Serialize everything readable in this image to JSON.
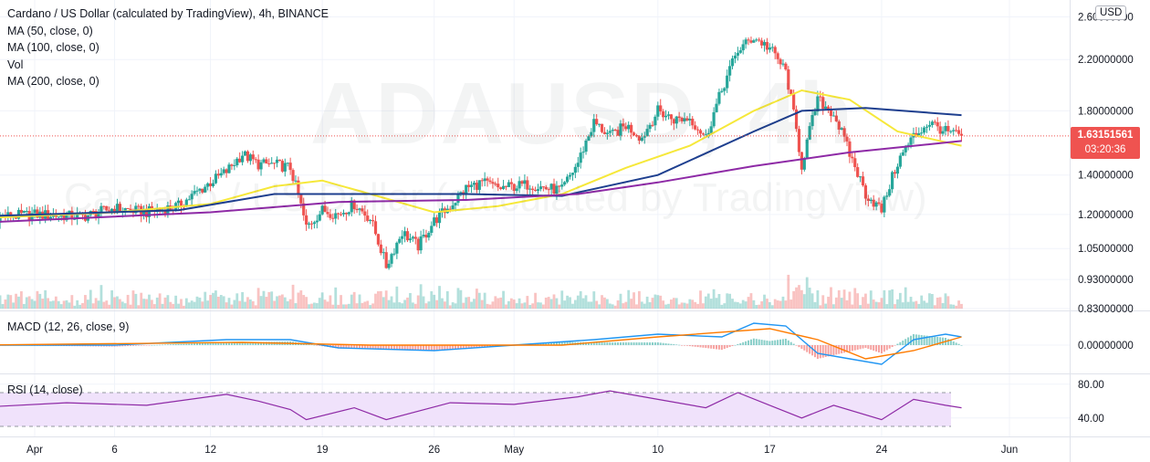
{
  "legend": {
    "title": "Cardano / US Dollar (calculated by TradingView), 4h, BINANCE",
    "ma50": "MA (50, close, 0)",
    "ma100": "MA (100, close, 0)",
    "vol": "Vol",
    "ma200": "MA (200, close, 0)"
  },
  "watermark": {
    "symbol": "ADAUSD, 4h",
    "name": "Cardano / US Dollar (calculated by TradingView)"
  },
  "currency_button": "USD",
  "last_price": {
    "price": "1.63151561",
    "countdown": "03:20:36"
  },
  "macd_label": "MACD (12, 26, close, 9)",
  "rsi_label": "RSI (14, close)",
  "colors": {
    "up": "#26a69a",
    "down": "#ef5350",
    "ma50": "#f6e83a",
    "ma100": "#1e3f8f",
    "ma200": "#8e2aa6",
    "macd": "#2196f3",
    "signal": "#ff7b00",
    "rsi": "#8e2aa6",
    "rsi_band": "#f0e2fb"
  },
  "chart_data": {
    "type": "candlestick",
    "x_ticks": [
      {
        "label": "Apr",
        "date": "2021-04-01"
      },
      {
        "label": "6",
        "date": "2021-04-06"
      },
      {
        "label": "12",
        "date": "2021-04-12"
      },
      {
        "label": "19",
        "date": "2021-04-19"
      },
      {
        "label": "26",
        "date": "2021-04-26"
      },
      {
        "label": "May",
        "date": "2021-05-01"
      },
      {
        "label": "10",
        "date": "2021-05-10"
      },
      {
        "label": "17",
        "date": "2021-05-17"
      },
      {
        "label": "24",
        "date": "2021-05-24"
      },
      {
        "label": "Jun",
        "date": "2021-06-01"
      }
    ],
    "y_ticks": [
      "2.60000000",
      "2.20000000",
      "1.80000000",
      "1.40000000",
      "1.20000000",
      "1.05000000",
      "0.93000000",
      "0.83000000"
    ],
    "y_range": [
      0.83,
      2.6
    ],
    "y_scale": "log",
    "price_path": [
      [
        "2021-03-28",
        1.18
      ],
      [
        "2021-04-01",
        1.2
      ],
      [
        "2021-04-04",
        1.19
      ],
      [
        "2021-04-06",
        1.23
      ],
      [
        "2021-04-08",
        1.21
      ],
      [
        "2021-04-10",
        1.24
      ],
      [
        "2021-04-11",
        1.3
      ],
      [
        "2021-04-13",
        1.42
      ],
      [
        "2021-04-14",
        1.52
      ],
      [
        "2021-04-15",
        1.46
      ],
      [
        "2021-04-16",
        1.46
      ],
      [
        "2021-04-17",
        1.44
      ],
      [
        "2021-04-18",
        1.14
      ],
      [
        "2021-04-19",
        1.22
      ],
      [
        "2021-04-20",
        1.2
      ],
      [
        "2021-04-21",
        1.25
      ],
      [
        "2021-04-22",
        1.18
      ],
      [
        "2021-04-23",
        0.98
      ],
      [
        "2021-04-24",
        1.12
      ],
      [
        "2021-04-25",
        1.06
      ],
      [
        "2021-04-26",
        1.17
      ],
      [
        "2021-04-27",
        1.24
      ],
      [
        "2021-04-28",
        1.33
      ],
      [
        "2021-04-29",
        1.36
      ],
      [
        "2021-04-30",
        1.33
      ],
      [
        "2021-05-02",
        1.35
      ],
      [
        "2021-05-03",
        1.33
      ],
      [
        "2021-05-04",
        1.32
      ],
      [
        "2021-05-05",
        1.47
      ],
      [
        "2021-05-06",
        1.72
      ],
      [
        "2021-05-07",
        1.63
      ],
      [
        "2021-05-08",
        1.7
      ],
      [
        "2021-05-09",
        1.62
      ],
      [
        "2021-05-10",
        1.8
      ],
      [
        "2021-05-11",
        1.74
      ],
      [
        "2021-05-12",
        1.75
      ],
      [
        "2021-05-13",
        1.62
      ],
      [
        "2021-05-14",
        1.95
      ],
      [
        "2021-05-15",
        2.28
      ],
      [
        "2021-05-16",
        2.4
      ],
      [
        "2021-05-17",
        2.3
      ],
      [
        "2021-05-18",
        2.1
      ],
      [
        "2021-05-19",
        1.45
      ],
      [
        "2021-05-20",
        1.88
      ],
      [
        "2021-05-21",
        1.78
      ],
      [
        "2021-05-22",
        1.52
      ],
      [
        "2021-05-23",
        1.3
      ],
      [
        "2021-05-24",
        1.22
      ],
      [
        "2021-05-25",
        1.47
      ],
      [
        "2021-05-26",
        1.63
      ],
      [
        "2021-05-27",
        1.72
      ],
      [
        "2021-05-28",
        1.66
      ],
      [
        "2021-05-29",
        1.63
      ]
    ],
    "ma_curves": {
      "MA (50, close, 0)": [
        [
          "2021-03-28",
          1.18
        ],
        [
          "2021-04-06",
          1.21
        ],
        [
          "2021-04-12",
          1.25
        ],
        [
          "2021-04-16",
          1.34
        ],
        [
          "2021-04-19",
          1.37
        ],
        [
          "2021-04-22",
          1.3
        ],
        [
          "2021-04-26",
          1.21
        ],
        [
          "2021-04-30",
          1.24
        ],
        [
          "2021-05-04",
          1.3
        ],
        [
          "2021-05-08",
          1.44
        ],
        [
          "2021-05-12",
          1.57
        ],
        [
          "2021-05-16",
          1.8
        ],
        [
          "2021-05-19",
          1.95
        ],
        [
          "2021-05-22",
          1.88
        ],
        [
          "2021-05-25",
          1.66
        ],
        [
          "2021-05-29",
          1.57
        ]
      ],
      "MA (100, close, 0)": [
        [
          "2021-03-28",
          1.19
        ],
        [
          "2021-04-10",
          1.22
        ],
        [
          "2021-04-16",
          1.3
        ],
        [
          "2021-04-22",
          1.3
        ],
        [
          "2021-04-28",
          1.3
        ],
        [
          "2021-05-04",
          1.29
        ],
        [
          "2021-05-10",
          1.4
        ],
        [
          "2021-05-16",
          1.66
        ],
        [
          "2021-05-19",
          1.8
        ],
        [
          "2021-05-23",
          1.82
        ],
        [
          "2021-05-29",
          1.77
        ]
      ],
      "MA (200, close, 0)": [
        [
          "2021-03-28",
          1.16
        ],
        [
          "2021-04-12",
          1.21
        ],
        [
          "2021-04-20",
          1.26
        ],
        [
          "2021-04-28",
          1.27
        ],
        [
          "2021-05-05",
          1.3
        ],
        [
          "2021-05-10",
          1.36
        ],
        [
          "2021-05-16",
          1.45
        ],
        [
          "2021-05-22",
          1.53
        ],
        [
          "2021-05-29",
          1.6
        ]
      ]
    },
    "macd": [
      [
        "2021-03-28",
        0.0
      ],
      [
        "2021-04-06",
        0.0
      ],
      [
        "2021-04-13",
        0.02
      ],
      [
        "2021-04-17",
        0.02
      ],
      [
        "2021-04-20",
        -0.01
      ],
      [
        "2021-04-26",
        -0.02
      ],
      [
        "2021-05-01",
        0.0
      ],
      [
        "2021-05-06",
        0.02
      ],
      [
        "2021-05-10",
        0.04
      ],
      [
        "2021-05-14",
        0.03
      ],
      [
        "2021-05-16",
        0.08
      ],
      [
        "2021-05-18",
        0.07
      ],
      [
        "2021-05-20",
        -0.03
      ],
      [
        "2021-05-22",
        -0.05
      ],
      [
        "2021-05-24",
        -0.07
      ],
      [
        "2021-05-26",
        0.02
      ],
      [
        "2021-05-28",
        0.04
      ],
      [
        "2021-05-29",
        0.03
      ]
    ],
    "macd_signal": [
      [
        "2021-03-28",
        0.0
      ],
      [
        "2021-04-14",
        0.01
      ],
      [
        "2021-04-22",
        0.0
      ],
      [
        "2021-05-04",
        0.0
      ],
      [
        "2021-05-10",
        0.03
      ],
      [
        "2021-05-17",
        0.06
      ],
      [
        "2021-05-20",
        0.02
      ],
      [
        "2021-05-23",
        -0.05
      ],
      [
        "2021-05-26",
        -0.02
      ],
      [
        "2021-05-29",
        0.03
      ]
    ],
    "macd_axis_label": "0.00000000",
    "rsi": [
      [
        "2021-03-28",
        52
      ],
      [
        "2021-04-03",
        58
      ],
      [
        "2021-04-08",
        55
      ],
      [
        "2021-04-13",
        68
      ],
      [
        "2021-04-15",
        60
      ],
      [
        "2021-04-17",
        50
      ],
      [
        "2021-04-18",
        38
      ],
      [
        "2021-04-21",
        52
      ],
      [
        "2021-04-23",
        38
      ],
      [
        "2021-04-27",
        58
      ],
      [
        "2021-05-01",
        56
      ],
      [
        "2021-05-05",
        65
      ],
      [
        "2021-05-07",
        72
      ],
      [
        "2021-05-10",
        62
      ],
      [
        "2021-05-13",
        52
      ],
      [
        "2021-05-15",
        70
      ],
      [
        "2021-05-17",
        55
      ],
      [
        "2021-05-19",
        40
      ],
      [
        "2021-05-21",
        55
      ],
      [
        "2021-05-24",
        38
      ],
      [
        "2021-05-26",
        62
      ],
      [
        "2021-05-28",
        55
      ],
      [
        "2021-05-29",
        52
      ]
    ],
    "rsi_ticks": [
      "80.00",
      "40.00"
    ],
    "rsi_band": [
      30,
      70
    ]
  }
}
